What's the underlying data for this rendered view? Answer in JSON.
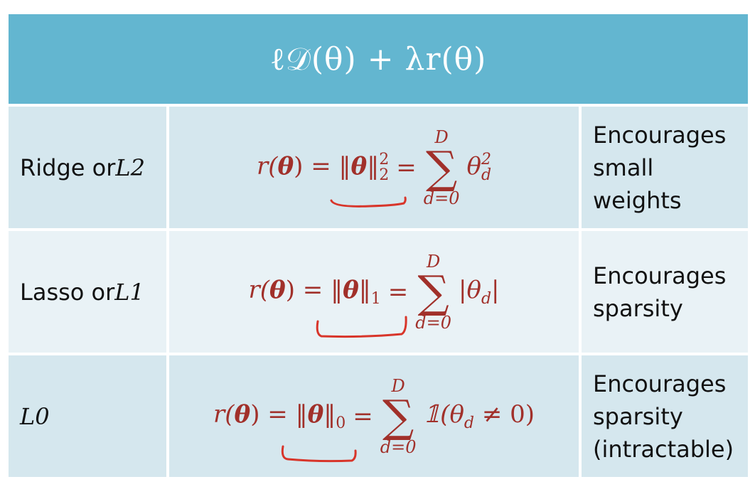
{
  "header": {
    "formula": "ℓ𝒟(θ) + λr(θ)"
  },
  "rows": [
    {
      "name_prefix": "Ridge or ",
      "name_var": "L2",
      "formula": {
        "lhs": "r(",
        "theta": "θ",
        "rhs": ") = ‖",
        "norm_sub": "2",
        "norm_sup": "2",
        "eq": "=",
        "sum_top": "D",
        "sum_sym": "∑",
        "sum_bottom": "d=0",
        "term": "θ",
        "term_sub": "d",
        "term_sup": "2"
      },
      "description_lines": [
        "Encourages",
        "small",
        "weights"
      ]
    },
    {
      "name_prefix": "Lasso or ",
      "name_var": "L1",
      "formula": {
        "lhs": "r(",
        "theta": "θ",
        "rhs": ") = ‖",
        "norm_sub": "1",
        "eq": "=",
        "sum_top": "D",
        "sum_sym": "∑",
        "sum_bottom": "d=0",
        "term": "|θ",
        "term_sub": "d",
        "term_end": "|"
      },
      "description_lines": [
        "Encourages",
        "sparsity"
      ]
    },
    {
      "name_prefix": "",
      "name_var": "L0",
      "formula": {
        "lhs": "r(",
        "theta": "θ",
        "rhs": ") = ‖",
        "norm_sub": "0",
        "eq": "=",
        "sum_top": "D",
        "sum_sym": "∑",
        "sum_bottom": "d=0",
        "term": "𝟙(θ",
        "term_sub": "d",
        "term_end": " ≠ 0)"
      },
      "description_lines": [
        "Encourages",
        "sparsity",
        "(intractable)"
      ]
    }
  ],
  "colors": {
    "header_bg": "#63b6d0",
    "row_dark": "#d5e7ee",
    "row_light": "#e9f2f6",
    "formula_red": "#a1302a",
    "ink_red": "#d8352a"
  }
}
